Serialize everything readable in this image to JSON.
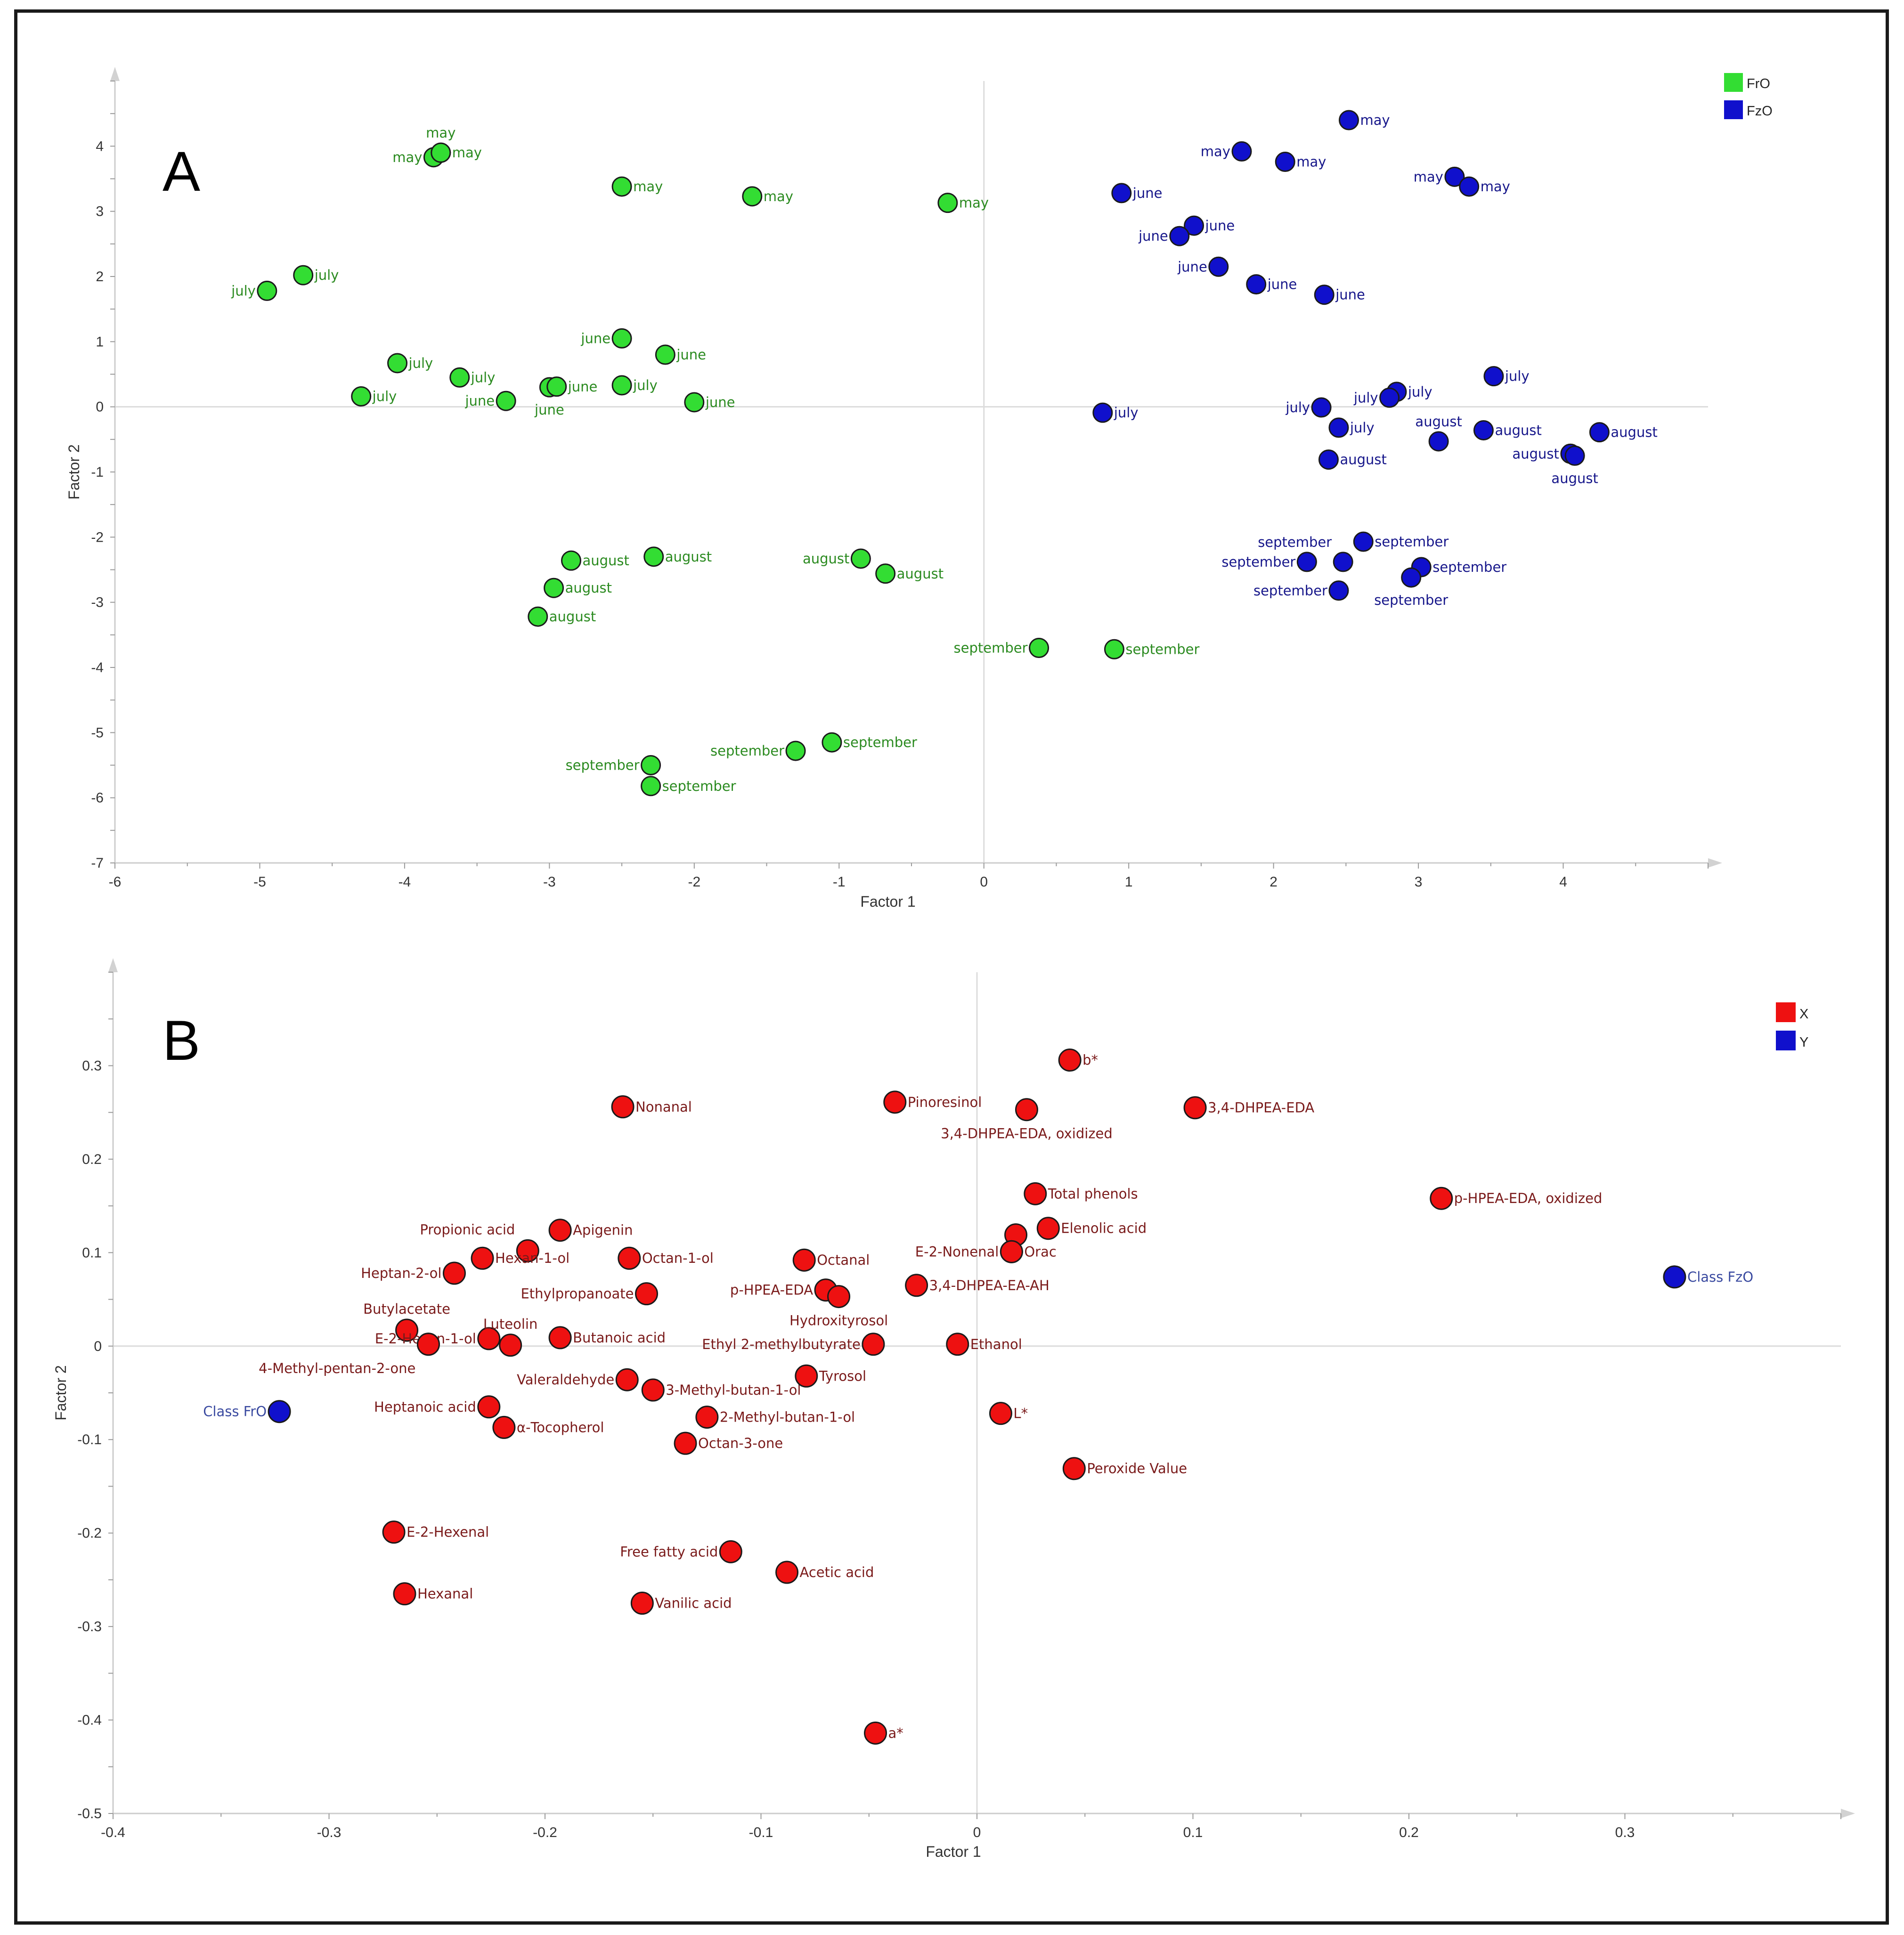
{
  "chart_data": [
    {
      "type": "scatter",
      "panel": "A",
      "xlabel": "Factor 1",
      "ylabel": "Factor 2",
      "xlim": [
        -6,
        5
      ],
      "ylim": [
        -7,
        5
      ],
      "xticks": [
        -6,
        -5,
        -4,
        -3,
        -2,
        -1,
        0,
        1,
        2,
        3,
        4
      ],
      "yticks": [
        -7,
        -6,
        -5,
        -4,
        -3,
        -2,
        -1,
        0,
        1,
        2,
        3,
        4
      ],
      "legend": [
        {
          "name": "FrO",
          "color": "#33dd33"
        },
        {
          "name": "FzO",
          "color": "#1010cc"
        }
      ],
      "series": [
        {
          "name": "FrO",
          "color": "#33dd33",
          "label_color": "#2a8a1f",
          "points": [
            {
              "x": -3.8,
              "y": 3.83,
              "label": "may",
              "pos": "left"
            },
            {
              "x": -3.75,
              "y": 3.9,
              "label": "may",
              "pos": "above"
            },
            {
              "x": -3.75,
              "y": 3.9,
              "label": "may",
              "pos": "right"
            },
            {
              "x": -2.5,
              "y": 3.38,
              "label": "may",
              "pos": "right"
            },
            {
              "x": -1.6,
              "y": 3.23,
              "label": "may",
              "pos": "right"
            },
            {
              "x": -0.25,
              "y": 3.13,
              "label": "may",
              "pos": "right"
            },
            {
              "x": -4.95,
              "y": 1.78,
              "label": "july",
              "pos": "left"
            },
            {
              "x": -4.7,
              "y": 2.02,
              "label": "july",
              "pos": "right"
            },
            {
              "x": -4.05,
              "y": 0.67,
              "label": "july",
              "pos": "right"
            },
            {
              "x": -3.62,
              "y": 0.45,
              "label": "july",
              "pos": "right"
            },
            {
              "x": -4.3,
              "y": 0.16,
              "label": "july",
              "pos": "right"
            },
            {
              "x": -2.5,
              "y": 0.33,
              "label": "july",
              "pos": "right"
            },
            {
              "x": -2.5,
              "y": 1.05,
              "label": "june",
              "pos": "left"
            },
            {
              "x": -2.2,
              "y": 0.8,
              "label": "june",
              "pos": "right"
            },
            {
              "x": -3.3,
              "y": 0.09,
              "label": "june",
              "pos": "left"
            },
            {
              "x": -3.0,
              "y": 0.3,
              "label": "june",
              "pos": "below"
            },
            {
              "x": -2.95,
              "y": 0.31,
              "label": "june",
              "pos": "right"
            },
            {
              "x": -2.0,
              "y": 0.07,
              "label": "june",
              "pos": "right"
            },
            {
              "x": -2.85,
              "y": -2.36,
              "label": "august",
              "pos": "right"
            },
            {
              "x": -2.28,
              "y": -2.3,
              "label": "august",
              "pos": "right"
            },
            {
              "x": -2.97,
              "y": -2.78,
              "label": "august",
              "pos": "right"
            },
            {
              "x": -3.08,
              "y": -3.22,
              "label": "august",
              "pos": "right"
            },
            {
              "x": -0.85,
              "y": -2.33,
              "label": "august",
              "pos": "left"
            },
            {
              "x": -0.68,
              "y": -2.56,
              "label": "august",
              "pos": "right"
            },
            {
              "x": 0.38,
              "y": -3.7,
              "label": "september",
              "pos": "left"
            },
            {
              "x": 0.9,
              "y": -3.72,
              "label": "september",
              "pos": "right"
            },
            {
              "x": -1.05,
              "y": -5.15,
              "label": "september",
              "pos": "right"
            },
            {
              "x": -1.3,
              "y": -5.28,
              "label": "september",
              "pos": "left"
            },
            {
              "x": -2.3,
              "y": -5.5,
              "label": "september",
              "pos": "left"
            },
            {
              "x": -2.3,
              "y": -5.82,
              "label": "september",
              "pos": "right"
            }
          ]
        },
        {
          "name": "FzO",
          "color": "#1010cc",
          "label_color": "#16168a",
          "points": [
            {
              "x": 2.52,
              "y": 4.4,
              "label": "may",
              "pos": "right"
            },
            {
              "x": 1.78,
              "y": 3.92,
              "label": "may",
              "pos": "left"
            },
            {
              "x": 2.08,
              "y": 3.76,
              "label": "may",
              "pos": "right"
            },
            {
              "x": 3.25,
              "y": 3.53,
              "label": "may",
              "pos": "left"
            },
            {
              "x": 3.35,
              "y": 3.38,
              "label": "may",
              "pos": "right"
            },
            {
              "x": 0.95,
              "y": 3.28,
              "label": "june",
              "pos": "right"
            },
            {
              "x": 1.45,
              "y": 2.78,
              "label": "june",
              "pos": "right"
            },
            {
              "x": 1.35,
              "y": 2.62,
              "label": "june",
              "pos": "left"
            },
            {
              "x": 1.62,
              "y": 2.15,
              "label": "june",
              "pos": "left"
            },
            {
              "x": 1.88,
              "y": 1.88,
              "label": "june",
              "pos": "right"
            },
            {
              "x": 2.35,
              "y": 1.72,
              "label": "june",
              "pos": "right"
            },
            {
              "x": 3.52,
              "y": 0.47,
              "label": "july",
              "pos": "right"
            },
            {
              "x": 2.85,
              "y": 0.23,
              "label": "july",
              "pos": "right"
            },
            {
              "x": 2.8,
              "y": 0.14,
              "label": "july",
              "pos": "left"
            },
            {
              "x": 2.33,
              "y": -0.01,
              "label": "july",
              "pos": "left"
            },
            {
              "x": 2.45,
              "y": -0.32,
              "label": "july",
              "pos": "right"
            },
            {
              "x": 0.82,
              "y": -0.09,
              "label": "july",
              "pos": "right"
            },
            {
              "x": 3.14,
              "y": -0.53,
              "label": "august",
              "pos": "above"
            },
            {
              "x": 3.45,
              "y": -0.36,
              "label": "august",
              "pos": "right"
            },
            {
              "x": 4.25,
              "y": -0.39,
              "label": "august",
              "pos": "right"
            },
            {
              "x": 4.05,
              "y": -0.72,
              "label": "august",
              "pos": "left"
            },
            {
              "x": 4.08,
              "y": -0.75,
              "label": "august",
              "pos": "below"
            },
            {
              "x": 2.38,
              "y": -0.81,
              "label": "august",
              "pos": "right"
            },
            {
              "x": 2.62,
              "y": -2.07,
              "label": "september",
              "pos": "right"
            },
            {
              "x": 2.48,
              "y": -2.38,
              "label": "september",
              "pos": "above-left"
            },
            {
              "x": 2.23,
              "y": -2.38,
              "label": "september",
              "pos": "left"
            },
            {
              "x": 3.02,
              "y": -2.46,
              "label": "september",
              "pos": "right"
            },
            {
              "x": 2.95,
              "y": -2.62,
              "label": "september",
              "pos": "below"
            },
            {
              "x": 2.45,
              "y": -2.82,
              "label": "september",
              "pos": "left"
            }
          ]
        }
      ]
    },
    {
      "type": "scatter",
      "panel": "B",
      "xlabel": "Factor 1",
      "ylabel": "Factor 2",
      "xlim": [
        -0.4,
        0.4
      ],
      "ylim": [
        -0.5,
        0.4
      ],
      "xticks": [
        -0.4,
        -0.3,
        -0.2,
        -0.1,
        0,
        0.1,
        0.2,
        0.3
      ],
      "yticks": [
        -0.5,
        -0.4,
        -0.3,
        -0.2,
        -0.1,
        0,
        0.1,
        0.2,
        0.3
      ],
      "legend": [
        {
          "name": "X",
          "color": "#ee1111"
        },
        {
          "name": "Y",
          "color": "#1010cc"
        }
      ],
      "series": [
        {
          "name": "X",
          "color": "#ee1111",
          "label_color": "#7a1a1a",
          "points": [
            {
              "x": 0.043,
              "y": 0.306,
              "label": "b*",
              "pos": "right"
            },
            {
              "x": -0.164,
              "y": 0.256,
              "label": "Nonanal",
              "pos": "right"
            },
            {
              "x": -0.038,
              "y": 0.261,
              "label": "Pinoresinol",
              "pos": "right"
            },
            {
              "x": 0.023,
              "y": 0.253,
              "label": "3,4-DHPEA-EDA, oxidized",
              "pos": "below"
            },
            {
              "x": 0.101,
              "y": 0.255,
              "label": "3,4-DHPEA-EDA",
              "pos": "right"
            },
            {
              "x": 0.027,
              "y": 0.163,
              "label": "Total phenols",
              "pos": "right"
            },
            {
              "x": 0.215,
              "y": 0.158,
              "label": "p-HPEA-EDA, oxidized",
              "pos": "right"
            },
            {
              "x": 0.033,
              "y": 0.126,
              "label": "Elenolic acid",
              "pos": "right"
            },
            {
              "x": 0.018,
              "y": 0.119,
              "label": "",
              "pos": "none"
            },
            {
              "x": 0.016,
              "y": 0.101,
              "label": "Orac",
              "pos": "right"
            },
            {
              "x": 0.016,
              "y": 0.101,
              "label": "E-2-Nonenal",
              "pos": "left"
            },
            {
              "x": -0.193,
              "y": 0.124,
              "label": "Apigenin",
              "pos": "right"
            },
            {
              "x": -0.208,
              "y": 0.102,
              "label": "Propionic acid",
              "pos": "above-left"
            },
            {
              "x": -0.229,
              "y": 0.094,
              "label": "Hexan-1-ol",
              "pos": "right"
            },
            {
              "x": -0.242,
              "y": 0.078,
              "label": "Heptan-2-ol",
              "pos": "left"
            },
            {
              "x": -0.161,
              "y": 0.094,
              "label": "Octan-1-ol",
              "pos": "right"
            },
            {
              "x": -0.08,
              "y": 0.092,
              "label": "Octanal",
              "pos": "right"
            },
            {
              "x": -0.153,
              "y": 0.056,
              "label": "Ethylpropanoate",
              "pos": "left"
            },
            {
              "x": -0.07,
              "y": 0.06,
              "label": "p-HPEA-EDA",
              "pos": "left"
            },
            {
              "x": -0.064,
              "y": 0.053,
              "label": "Hydroxityrosol",
              "pos": "below"
            },
            {
              "x": -0.028,
              "y": 0.065,
              "label": "3,4-DHPEA-EA-AH",
              "pos": "right"
            },
            {
              "x": -0.264,
              "y": 0.017,
              "label": "Butylacetate",
              "pos": "above"
            },
            {
              "x": -0.226,
              "y": 0.008,
              "label": "E-2-Hexen-1-ol",
              "pos": "left"
            },
            {
              "x": -0.254,
              "y": 0.002,
              "label": "",
              "pos": "none"
            },
            {
              "x": -0.216,
              "y": 0.001,
              "label": "Luteolin",
              "pos": "above"
            },
            {
              "x": -0.193,
              "y": 0.009,
              "label": "Butanoic acid",
              "pos": "right"
            },
            {
              "x": -0.048,
              "y": 0.002,
              "label": "Ethyl 2-methylbutyrate",
              "pos": "left"
            },
            {
              "x": -0.009,
              "y": 0.002,
              "label": "Ethanol",
              "pos": "right"
            },
            {
              "x": -0.254,
              "y": 0.002,
              "label": "4-Methyl-pentan-2-one",
              "pos": "below-left"
            },
            {
              "x": -0.162,
              "y": -0.036,
              "label": "Valeraldehyde",
              "pos": "left"
            },
            {
              "x": -0.15,
              "y": -0.047,
              "label": "3-Methyl-butan-1-ol",
              "pos": "right"
            },
            {
              "x": -0.079,
              "y": -0.032,
              "label": "Tyrosol",
              "pos": "right"
            },
            {
              "x": -0.226,
              "y": -0.065,
              "label": "Heptanoic acid",
              "pos": "left"
            },
            {
              "x": -0.219,
              "y": -0.087,
              "label": "α-Tocopherol",
              "pos": "right"
            },
            {
              "x": -0.125,
              "y": -0.076,
              "label": "2-Methyl-butan-1-ol",
              "pos": "right"
            },
            {
              "x": 0.011,
              "y": -0.072,
              "label": "L*",
              "pos": "right"
            },
            {
              "x": -0.135,
              "y": -0.104,
              "label": "Octan-3-one",
              "pos": "right"
            },
            {
              "x": 0.045,
              "y": -0.131,
              "label": "Peroxide Value",
              "pos": "right"
            },
            {
              "x": -0.27,
              "y": -0.199,
              "label": "E-2-Hexenal",
              "pos": "right"
            },
            {
              "x": -0.114,
              "y": -0.22,
              "label": "Free fatty acid",
              "pos": "left"
            },
            {
              "x": -0.088,
              "y": -0.242,
              "label": "Acetic acid",
              "pos": "right"
            },
            {
              "x": -0.265,
              "y": -0.265,
              "label": "Hexanal",
              "pos": "right"
            },
            {
              "x": -0.155,
              "y": -0.275,
              "label": "Vanilic acid",
              "pos": "right"
            },
            {
              "x": -0.047,
              "y": -0.414,
              "label": "a*",
              "pos": "right"
            }
          ]
        },
        {
          "name": "Y",
          "color": "#1010cc",
          "label_color": "#3a4aa0",
          "points": [
            {
              "x": 0.323,
              "y": 0.074,
              "label": "Class FzO",
              "pos": "right"
            },
            {
              "x": -0.323,
              "y": -0.07,
              "label": "Class FrO",
              "pos": "left"
            }
          ]
        }
      ]
    }
  ],
  "panel_labels": {
    "a": "A",
    "b": "B"
  }
}
